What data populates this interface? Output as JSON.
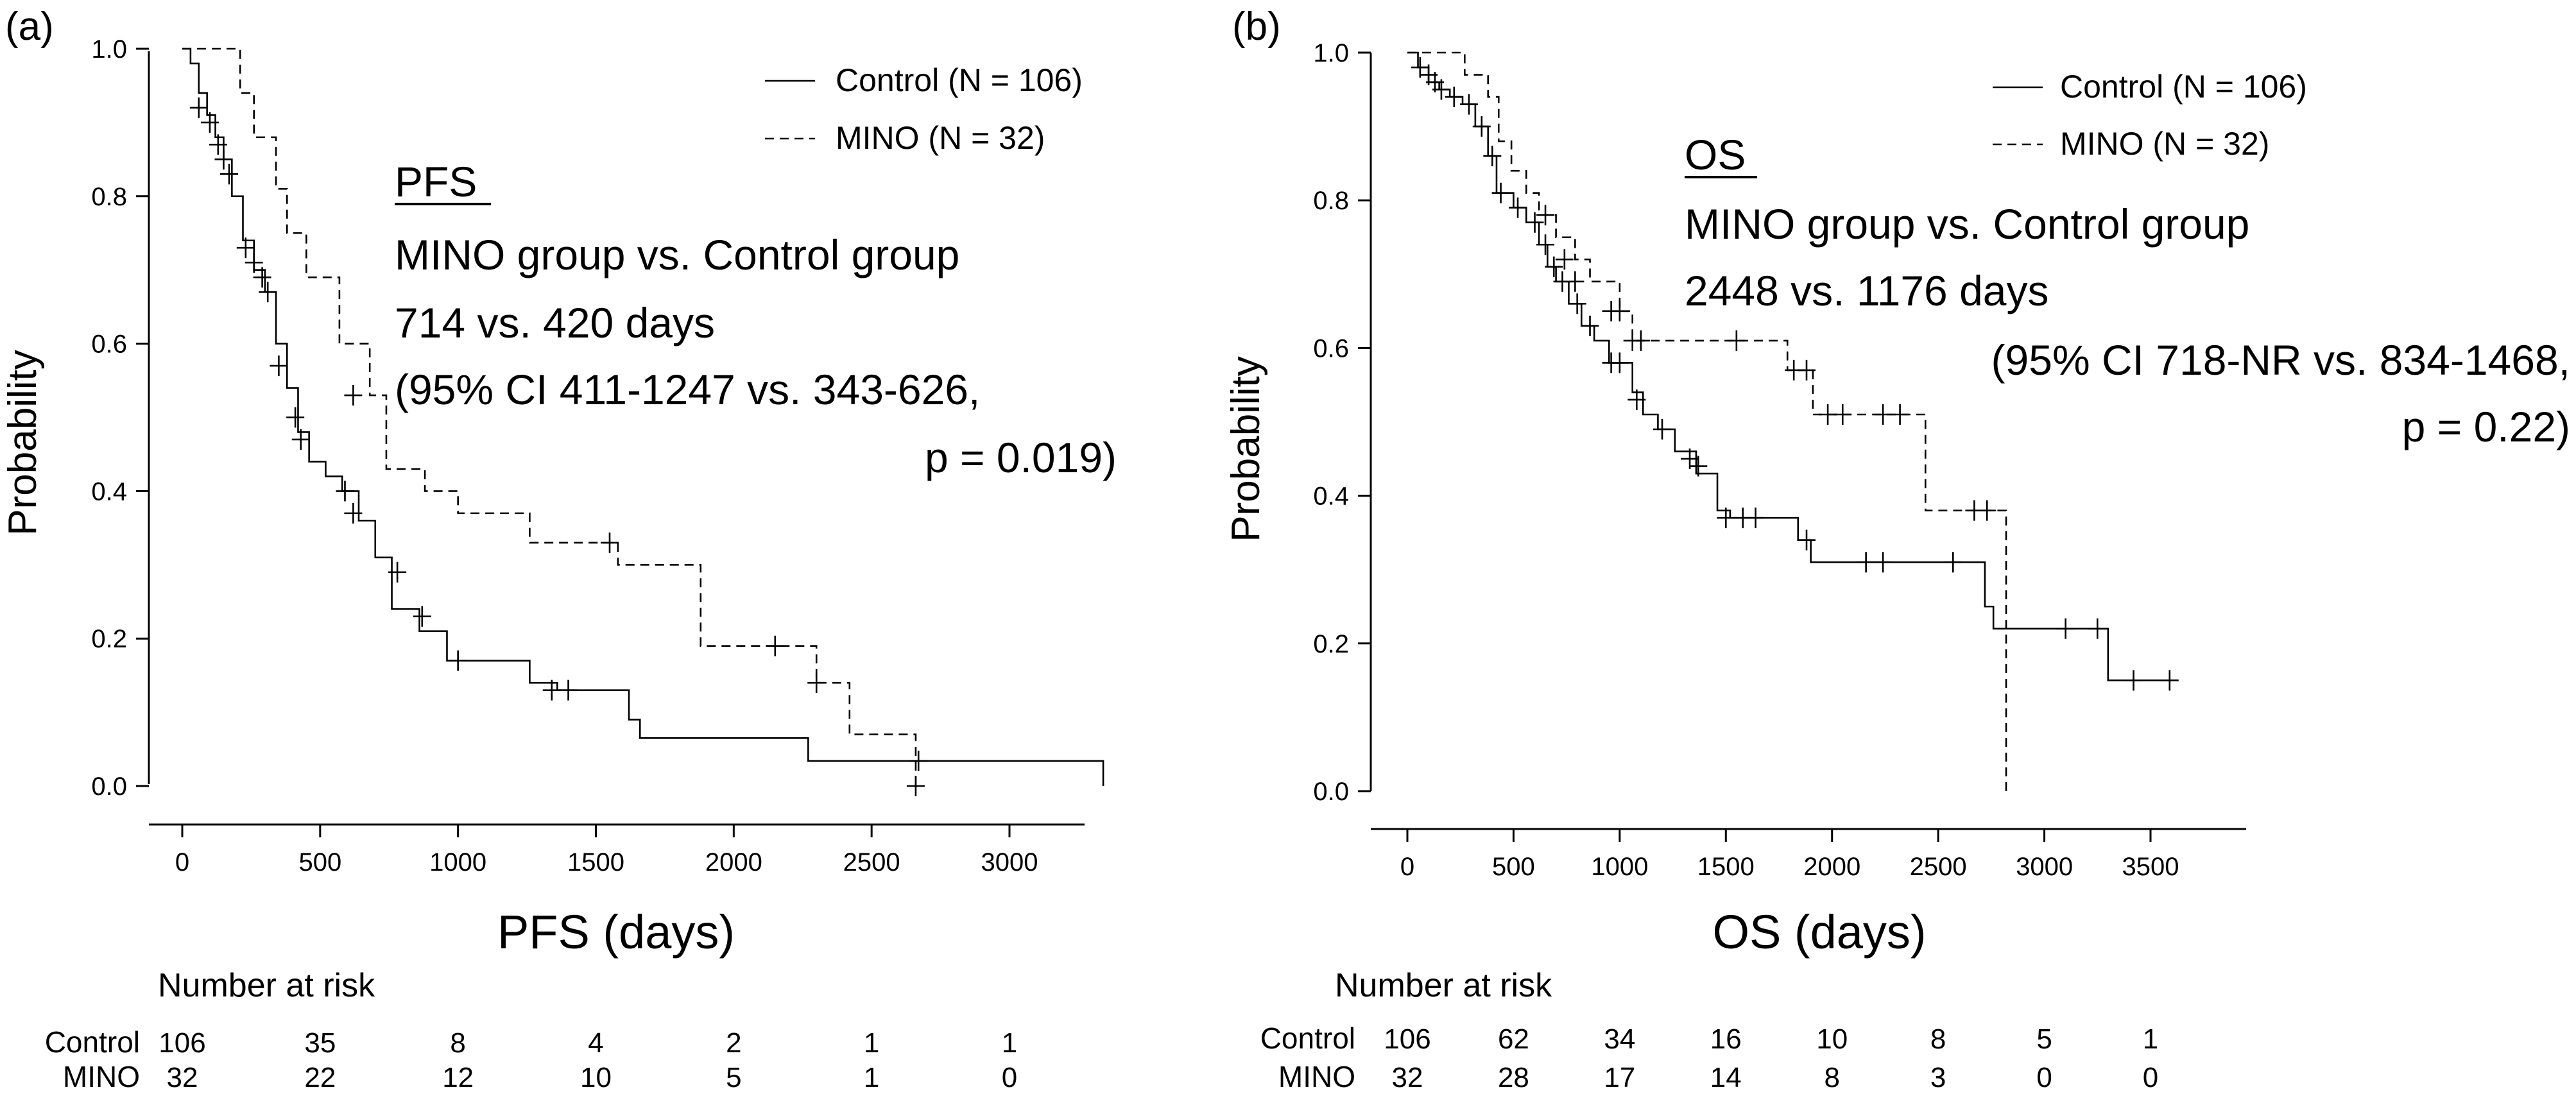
{
  "chart_data": [
    {
      "type": "line",
      "subtype": "kaplan-meier",
      "panel_label": "(a)",
      "xlabel": "PFS (days)",
      "ylabel": "Probability",
      "xlim": [
        0,
        3350
      ],
      "ylim": [
        0,
        1.0
      ],
      "xticks": [
        0,
        500,
        1000,
        1500,
        2000,
        2500,
        3000
      ],
      "xtick_labels": [
        "0",
        "500",
        "1000",
        "1500",
        "2000",
        "2500",
        "3000"
      ],
      "yticks": [
        0.0,
        0.2,
        0.4,
        0.6,
        0.8,
        1.0
      ],
      "ytick_labels": [
        "0.0",
        "0.2",
        "0.4",
        "0.6",
        "0.8",
        "1.0"
      ],
      "legend": [
        {
          "label": "Control (N = 106)",
          "style": "solid"
        },
        {
          "label": "MINO (N = 32)",
          "style": "dashed"
        }
      ],
      "annotation": {
        "heading": "PFS",
        "lines": [
          "MINO group vs. Control group",
          "714 vs. 420 days",
          "(95% CI 411-1247 vs. 343-626,",
          "p = 0.019)"
        ]
      },
      "series": [
        {
          "name": "Control",
          "style": "solid",
          "steps": [
            [
              0,
              1.0
            ],
            [
              30,
              0.98
            ],
            [
              60,
              0.94
            ],
            [
              90,
              0.91
            ],
            [
              120,
              0.88
            ],
            [
              150,
              0.85
            ],
            [
              180,
              0.8
            ],
            [
              220,
              0.74
            ],
            [
              260,
              0.7
            ],
            [
              300,
              0.67
            ],
            [
              340,
              0.6
            ],
            [
              380,
              0.54
            ],
            [
              420,
              0.48
            ],
            [
              460,
              0.44
            ],
            [
              520,
              0.42
            ],
            [
              580,
              0.4
            ],
            [
              640,
              0.36
            ],
            [
              700,
              0.31
            ],
            [
              760,
              0.24
            ],
            [
              860,
              0.21
            ],
            [
              960,
              0.17
            ],
            [
              1260,
              0.14
            ],
            [
              1360,
              0.13
            ],
            [
              1620,
              0.09
            ],
            [
              1660,
              0.065
            ],
            [
              2270,
              0.034
            ],
            [
              3340,
              0.0
            ]
          ],
          "censored": [
            [
              60,
              0.92
            ],
            [
              100,
              0.9
            ],
            [
              130,
              0.87
            ],
            [
              150,
              0.85
            ],
            [
              170,
              0.83
            ],
            [
              230,
              0.73
            ],
            [
              260,
              0.71
            ],
            [
              290,
              0.69
            ],
            [
              310,
              0.67
            ],
            [
              350,
              0.57
            ],
            [
              410,
              0.5
            ],
            [
              430,
              0.47
            ],
            [
              590,
              0.4
            ],
            [
              620,
              0.37
            ],
            [
              780,
              0.29
            ],
            [
              870,
              0.23
            ],
            [
              1000,
              0.17
            ],
            [
              1340,
              0.13
            ],
            [
              1400,
              0.13
            ],
            [
              2670,
              0.034
            ]
          ]
        },
        {
          "name": "MINO",
          "style": "dashed",
          "steps": [
            [
              0,
              1.0
            ],
            [
              210,
              0.94
            ],
            [
              260,
              0.88
            ],
            [
              340,
              0.81
            ],
            [
              380,
              0.75
            ],
            [
              450,
              0.69
            ],
            [
              570,
              0.6
            ],
            [
              680,
              0.53
            ],
            [
              740,
              0.43
            ],
            [
              880,
              0.4
            ],
            [
              1000,
              0.37
            ],
            [
              1260,
              0.33
            ],
            [
              1580,
              0.3
            ],
            [
              1880,
              0.19
            ],
            [
              2300,
              0.14
            ],
            [
              2420,
              0.07
            ],
            [
              2660,
              0.0
            ]
          ],
          "censored": [
            [
              620,
              0.53
            ],
            [
              1550,
              0.33
            ],
            [
              2150,
              0.19
            ],
            [
              2300,
              0.14
            ],
            [
              2660,
              0.0
            ]
          ]
        }
      ],
      "risk_table": {
        "title": "Number at risk",
        "times": [
          0,
          500,
          1000,
          1500,
          2000,
          2500,
          3000
        ],
        "rows": [
          {
            "label": "Control",
            "values": [
              "106",
              "35",
              "8",
              "4",
              "2",
              "1",
              "1"
            ]
          },
          {
            "label": "MINO",
            "values": [
              "32",
              "22",
              "12",
              "10",
              "5",
              "1",
              "0"
            ]
          }
        ]
      }
    },
    {
      "type": "line",
      "subtype": "kaplan-meier",
      "panel_label": "(b)",
      "xlabel": "OS (days)",
      "ylabel": "Probability",
      "xlim": [
        0,
        3750
      ],
      "ylim": [
        0,
        1.0
      ],
      "xticks": [
        0,
        500,
        1000,
        1500,
        2000,
        2500,
        3000,
        3500
      ],
      "xtick_labels": [
        "0",
        "500",
        "1000",
        "1500",
        "2000",
        "2500",
        "3000",
        "3500"
      ],
      "yticks": [
        0.0,
        0.2,
        0.4,
        0.6,
        0.8,
        1.0
      ],
      "ytick_labels": [
        "0.0",
        "0.2",
        "0.4",
        "0.6",
        "0.8",
        "1.0"
      ],
      "legend": [
        {
          "label": "Control (N = 106)",
          "style": "solid"
        },
        {
          "label": "MINO (N = 32)",
          "style": "dashed"
        }
      ],
      "annotation": {
        "heading": "OS",
        "lines": [
          "MINO group vs. Control group",
          "2448 vs. 1176 days",
          "(95% CI 718-NR vs. 834-1468,",
          "p = 0.22)"
        ]
      },
      "series": [
        {
          "name": "Control",
          "style": "solid",
          "steps": [
            [
              0,
              1.0
            ],
            [
              50,
              0.98
            ],
            [
              100,
              0.96
            ],
            [
              150,
              0.95
            ],
            [
              200,
              0.94
            ],
            [
              260,
              0.93
            ],
            [
              320,
              0.9
            ],
            [
              380,
              0.86
            ],
            [
              420,
              0.81
            ],
            [
              500,
              0.79
            ],
            [
              560,
              0.77
            ],
            [
              620,
              0.74
            ],
            [
              660,
              0.71
            ],
            [
              700,
              0.69
            ],
            [
              760,
              0.66
            ],
            [
              820,
              0.63
            ],
            [
              880,
              0.61
            ],
            [
              950,
              0.58
            ],
            [
              1060,
              0.54
            ],
            [
              1110,
              0.51
            ],
            [
              1180,
              0.49
            ],
            [
              1260,
              0.46
            ],
            [
              1360,
              0.43
            ],
            [
              1460,
              0.38
            ],
            [
              1520,
              0.37
            ],
            [
              1840,
              0.34
            ],
            [
              1900,
              0.31
            ],
            [
              2720,
              0.25
            ],
            [
              2760,
              0.22
            ],
            [
              3300,
              0.15
            ],
            [
              3600,
              0.15
            ]
          ],
          "censored": [
            [
              60,
              0.98
            ],
            [
              100,
              0.97
            ],
            [
              130,
              0.96
            ],
            [
              160,
              0.95
            ],
            [
              220,
              0.94
            ],
            [
              290,
              0.93
            ],
            [
              350,
              0.9
            ],
            [
              400,
              0.86
            ],
            [
              440,
              0.81
            ],
            [
              520,
              0.79
            ],
            [
              600,
              0.77
            ],
            [
              650,
              0.74
            ],
            [
              690,
              0.71
            ],
            [
              730,
              0.69
            ],
            [
              800,
              0.66
            ],
            [
              860,
              0.63
            ],
            [
              960,
              0.58
            ],
            [
              1000,
              0.58
            ],
            [
              1080,
              0.53
            ],
            [
              1200,
              0.49
            ],
            [
              1330,
              0.45
            ],
            [
              1370,
              0.44
            ],
            [
              1500,
              0.37
            ],
            [
              1580,
              0.37
            ],
            [
              1640,
              0.37
            ],
            [
              1880,
              0.34
            ],
            [
              2160,
              0.31
            ],
            [
              2240,
              0.31
            ],
            [
              2570,
              0.31
            ],
            [
              3100,
              0.22
            ],
            [
              3250,
              0.22
            ],
            [
              3420,
              0.15
            ],
            [
              3590,
              0.15
            ]
          ]
        },
        {
          "name": "MINO",
          "style": "dashed",
          "steps": [
            [
              0,
              1.0
            ],
            [
              270,
              0.97
            ],
            [
              380,
              0.94
            ],
            [
              430,
              0.88
            ],
            [
              490,
              0.84
            ],
            [
              560,
              0.81
            ],
            [
              620,
              0.78
            ],
            [
              700,
              0.75
            ],
            [
              790,
              0.72
            ],
            [
              860,
              0.69
            ],
            [
              1000,
              0.65
            ],
            [
              1060,
              0.61
            ],
            [
              1790,
              0.57
            ],
            [
              1910,
              0.51
            ],
            [
              2440,
              0.38
            ],
            [
              2820,
              0.0
            ]
          ],
          "censored": [
            [
              650,
              0.78
            ],
            [
              740,
              0.72
            ],
            [
              790,
              0.69
            ],
            [
              960,
              0.65
            ],
            [
              1000,
              0.65
            ],
            [
              1060,
              0.61
            ],
            [
              1100,
              0.61
            ],
            [
              1550,
              0.61
            ],
            [
              1820,
              0.57
            ],
            [
              1880,
              0.57
            ],
            [
              1980,
              0.51
            ],
            [
              2050,
              0.51
            ],
            [
              2240,
              0.51
            ],
            [
              2320,
              0.51
            ],
            [
              2670,
              0.38
            ],
            [
              2730,
              0.38
            ]
          ]
        }
      ],
      "risk_table": {
        "title": "Number at risk",
        "times": [
          0,
          500,
          1000,
          1500,
          2000,
          2500,
          3000,
          3500
        ],
        "rows": [
          {
            "label": "Control",
            "values": [
              "106",
              "62",
              "34",
              "16",
              "10",
              "8",
              "5",
              "1"
            ]
          },
          {
            "label": "MINO",
            "values": [
              "32",
              "28",
              "17",
              "14",
              "8",
              "3",
              "0",
              "0"
            ]
          }
        ]
      }
    }
  ]
}
